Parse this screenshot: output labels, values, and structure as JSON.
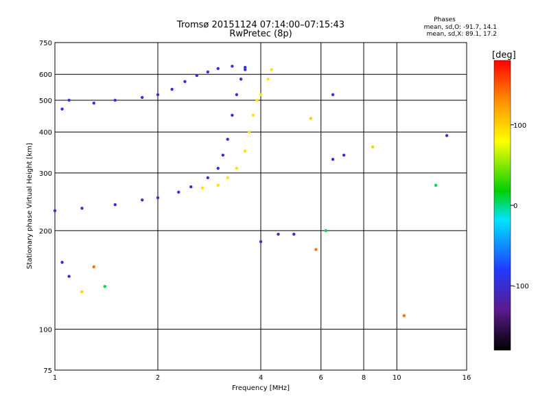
{
  "header": {
    "title": "Tromsø 20151124 07:14:00–07:15:43",
    "subtitle": "RwPretec (8p)"
  },
  "stats": {
    "heading": "Phases",
    "o_line": "mean, sd,O: -91.7, 14.1",
    "x_line": "mean, sd,X: 89.1, 17.2"
  },
  "chart_data": {
    "type": "scatter",
    "xlabel": "Frequency [MHz]",
    "ylabel": "Stationary phase Virtual Height [km]",
    "x_scale": "log",
    "y_scale": "log",
    "xlim": [
      1,
      16
    ],
    "ylim": [
      75,
      750
    ],
    "x_ticks": [
      1,
      2,
      4,
      6,
      8,
      10,
      16
    ],
    "y_ticks": [
      75,
      100,
      200,
      300,
      400,
      500,
      600,
      750
    ],
    "grid": true,
    "colorbar": {
      "label": "[deg]",
      "range": [
        -180,
        180
      ],
      "ticks": [
        -100,
        0,
        100
      ],
      "colors": [
        "#000000",
        "#5a1a8c",
        "#1f3cff",
        "#00e5ff",
        "#00d000",
        "#ffff00",
        "#ff9000",
        "#ff0000"
      ]
    },
    "series": [
      {
        "role": "O-mode lower trace",
        "phase_mean": -92,
        "points": [
          [
            1.0,
            230
          ],
          [
            1.2,
            234
          ],
          [
            1.5,
            240
          ],
          [
            1.8,
            248
          ],
          [
            2.0,
            252
          ],
          [
            2.3,
            262
          ],
          [
            2.5,
            272
          ],
          [
            2.8,
            290
          ],
          [
            3.0,
            310
          ],
          [
            3.1,
            340
          ],
          [
            3.2,
            380
          ],
          [
            3.3,
            450
          ],
          [
            3.4,
            520
          ],
          [
            3.5,
            580
          ],
          [
            3.6,
            620
          ]
        ]
      },
      {
        "role": "O-mode upper trace",
        "phase_mean": -92,
        "points": [
          [
            1.05,
            470
          ],
          [
            1.1,
            500
          ],
          [
            1.3,
            490
          ],
          [
            1.5,
            500
          ],
          [
            1.8,
            510
          ],
          [
            2.0,
            520
          ],
          [
            2.2,
            540
          ],
          [
            2.4,
            570
          ],
          [
            2.6,
            595
          ],
          [
            2.8,
            610
          ],
          [
            3.0,
            625
          ],
          [
            3.3,
            635
          ],
          [
            3.6,
            630
          ]
        ]
      },
      {
        "role": "X-mode trace",
        "phase_mean": 89,
        "points": [
          [
            2.7,
            270
          ],
          [
            3.0,
            275
          ],
          [
            3.2,
            290
          ],
          [
            3.4,
            310
          ],
          [
            3.6,
            350
          ],
          [
            3.7,
            400
          ],
          [
            3.8,
            450
          ],
          [
            3.9,
            500
          ],
          [
            4.0,
            520
          ],
          [
            4.2,
            580
          ],
          [
            4.3,
            620
          ]
        ]
      },
      {
        "role": "scattered echoes",
        "points": [
          [
            1.05,
            160
          ],
          [
            1.1,
            145
          ],
          [
            1.2,
            130
          ],
          [
            1.3,
            155
          ],
          [
            1.4,
            135
          ],
          [
            4.0,
            185
          ],
          [
            4.5,
            195
          ],
          [
            5.0,
            195
          ],
          [
            5.6,
            440
          ],
          [
            5.8,
            175
          ],
          [
            6.2,
            200
          ],
          [
            6.5,
            520
          ],
          [
            6.5,
            330
          ],
          [
            7.0,
            340
          ],
          [
            8.5,
            360
          ],
          [
            10.5,
            110
          ],
          [
            13.0,
            275
          ],
          [
            14.0,
            390
          ]
        ]
      }
    ]
  }
}
